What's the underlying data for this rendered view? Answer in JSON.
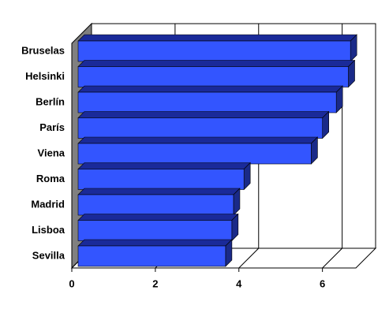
{
  "chart_data": {
    "type": "bar",
    "orientation": "horizontal",
    "categories": [
      "Bruselas",
      "Helsinki",
      "Berlín",
      "París",
      "Viena",
      "Roma",
      "Madrid",
      "Lisboa",
      "Sevilla"
    ],
    "values": [
      6.52,
      6.47,
      6.18,
      5.85,
      5.58,
      3.97,
      3.72,
      3.68,
      3.53
    ],
    "color": "#3355ff",
    "xlim": [
      0,
      6.8
    ],
    "xticks": [
      0,
      2,
      4,
      6
    ],
    "grid": true
  }
}
